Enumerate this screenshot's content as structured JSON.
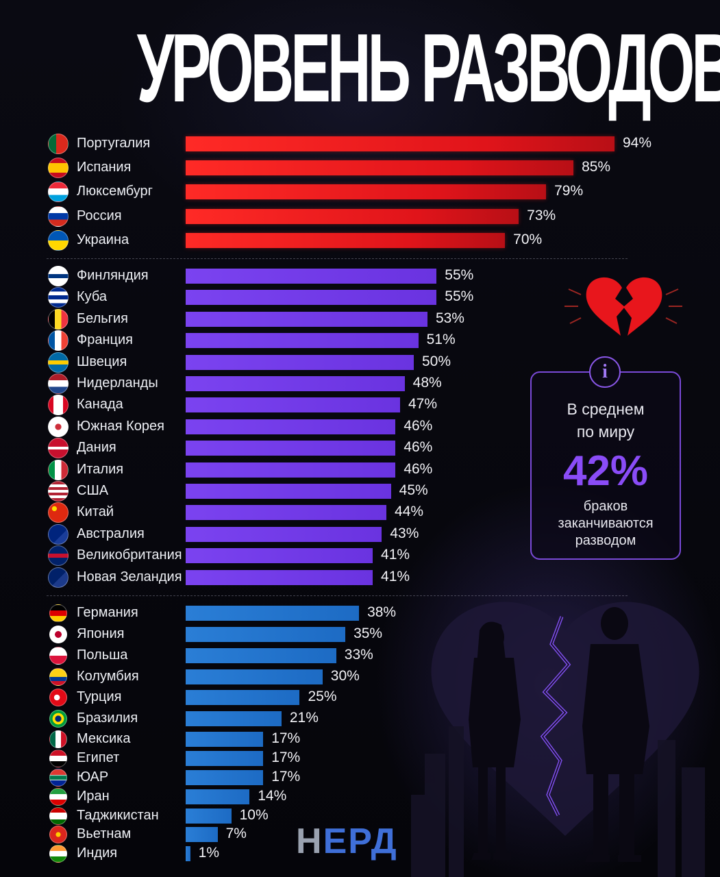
{
  "chart_data": {
    "type": "bar",
    "title": "УРОВЕНЬ РАЗВОДОВ",
    "orientation": "horizontal",
    "groups": [
      {
        "color": "red",
        "items": [
          {
            "country": "Португалия",
            "value": 94,
            "label": "94%",
            "flag": "portugal"
          },
          {
            "country": "Испания",
            "value": 85,
            "label": "85%",
            "flag": "spain"
          },
          {
            "country": "Люксембург",
            "value": 79,
            "label": "79%",
            "flag": "luxembourg"
          },
          {
            "country": "Россия",
            "value": 73,
            "label": "73%",
            "flag": "russia"
          },
          {
            "country": "Украина",
            "value": 70,
            "label": "70%",
            "flag": "ukraine"
          }
        ]
      },
      {
        "color": "purple",
        "items": [
          {
            "country": "Финляндия",
            "value": 55,
            "label": "55%",
            "flag": "finland"
          },
          {
            "country": "Куба",
            "value": 55,
            "label": "55%",
            "flag": "cuba"
          },
          {
            "country": "Бельгия",
            "value": 53,
            "label": "53%",
            "flag": "belgium"
          },
          {
            "country": "Франция",
            "value": 51,
            "label": "51%",
            "flag": "france"
          },
          {
            "country": "Швеция",
            "value": 50,
            "label": "50%",
            "flag": "sweden"
          },
          {
            "country": "Нидерланды",
            "value": 48,
            "label": "48%",
            "flag": "netherlands"
          },
          {
            "country": "Канада",
            "value": 47,
            "label": "47%",
            "flag": "canada"
          },
          {
            "country": "Южная Корея",
            "value": 46,
            "label": "46%",
            "flag": "south-korea"
          },
          {
            "country": "Дания",
            "value": 46,
            "label": "46%",
            "flag": "denmark"
          },
          {
            "country": "Италия",
            "value": 46,
            "label": "46%",
            "flag": "italy"
          },
          {
            "country": "США",
            "value": 45,
            "label": "45%",
            "flag": "usa"
          },
          {
            "country": "Китай",
            "value": 44,
            "label": "44%",
            "flag": "china"
          },
          {
            "country": "Австралия",
            "value": 43,
            "label": "43%",
            "flag": "australia"
          },
          {
            "country": "Великобритания",
            "value": 41,
            "label": "41%",
            "flag": "uk"
          },
          {
            "country": "Новая Зеландия",
            "value": 41,
            "label": "41%",
            "flag": "new-zealand"
          }
        ]
      },
      {
        "color": "blue",
        "items": [
          {
            "country": "Германия",
            "value": 38,
            "label": "38%",
            "flag": "germany"
          },
          {
            "country": "Япония",
            "value": 35,
            "label": "35%",
            "flag": "japan"
          },
          {
            "country": "Польша",
            "value": 33,
            "label": "33%",
            "flag": "poland"
          },
          {
            "country": "Колумбия",
            "value": 30,
            "label": "30%",
            "flag": "colombia"
          },
          {
            "country": "Турция",
            "value": 25,
            "label": "25%",
            "flag": "turkey"
          },
          {
            "country": "Бразилия",
            "value": 21,
            "label": "21%",
            "flag": "brazil"
          },
          {
            "country": "Мексика",
            "value": 17,
            "label": "17%",
            "flag": "mexico"
          },
          {
            "country": "Египет",
            "value": 17,
            "label": "17%",
            "flag": "egypt"
          },
          {
            "country": "ЮАР",
            "value": 17,
            "label": "17%",
            "flag": "south-africa"
          },
          {
            "country": "Иран",
            "value": 14,
            "label": "14%",
            "flag": "iran"
          },
          {
            "country": "Таджикистан",
            "value": 10,
            "label": "10%",
            "flag": "tajikistan"
          },
          {
            "country": "Вьетнам",
            "value": 7,
            "label": "7%",
            "flag": "vietnam"
          },
          {
            "country": "Индия",
            "value": 1,
            "label": "1%",
            "flag": "india"
          }
        ]
      }
    ],
    "colors": {
      "red": "#e8161c",
      "purple": "#6f38e6",
      "blue": "#2274cf"
    }
  },
  "info": {
    "icon": "info-icon",
    "line1": "В среднем",
    "line2": "по миру",
    "value": "42%",
    "line3": "браков",
    "line4": "заканчиваются",
    "line5": "разводом"
  },
  "decor": {
    "heart": "broken-heart-icon",
    "couple": "separated-couple-illustration"
  },
  "logo": {
    "part1": "Н",
    "part2": "ЕРД"
  }
}
